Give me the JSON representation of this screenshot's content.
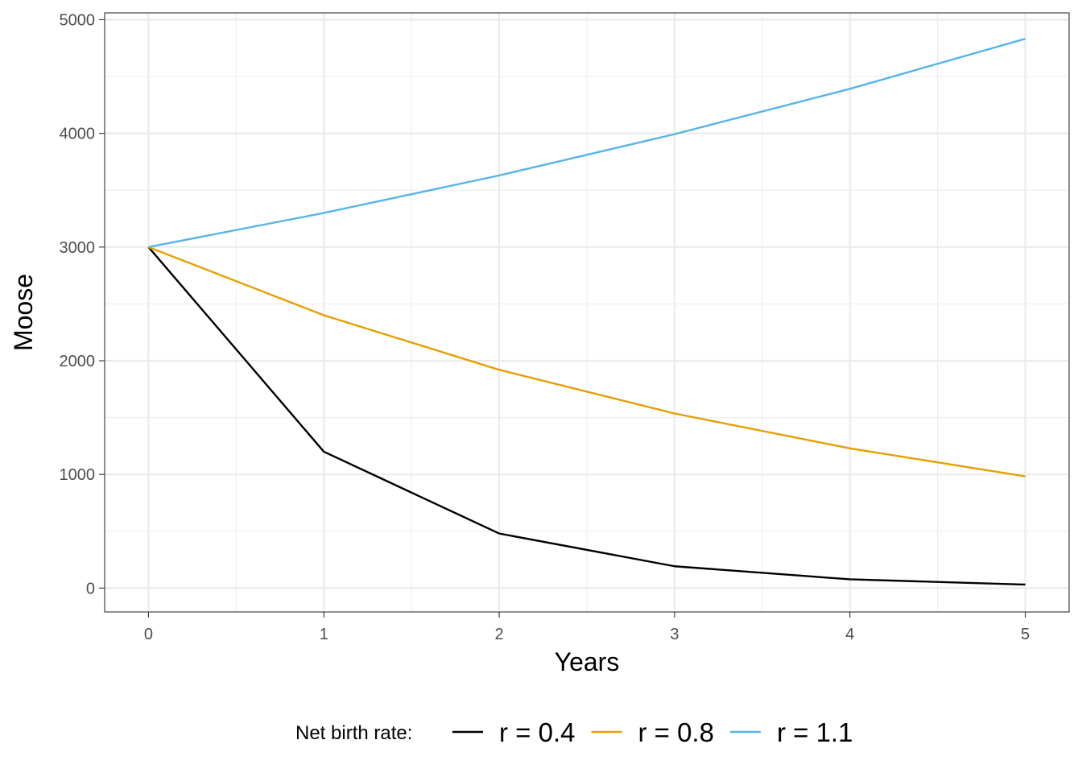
{
  "chart_data": {
    "type": "line",
    "title": "",
    "xlabel": "Years",
    "ylabel": "Moose",
    "x": [
      0,
      1,
      2,
      3,
      4,
      5
    ],
    "xlim": [
      -0.25,
      5.25
    ],
    "ylim": [
      -210,
      5060
    ],
    "x_ticks": [
      0,
      1,
      2,
      3,
      4,
      5
    ],
    "x_tick_labels": [
      "0",
      "1",
      "2",
      "3",
      "4",
      "5"
    ],
    "y_ticks": [
      0,
      1000,
      2000,
      3000,
      4000,
      5000
    ],
    "y_tick_labels": [
      "0",
      "1000",
      "2000",
      "3000",
      "4000",
      "5000"
    ],
    "grid": true,
    "legend": {
      "position": "bottom",
      "title": "Net birth rate:"
    },
    "series": [
      {
        "name": "r = 0.4",
        "color": "#000000",
        "values": [
          3000,
          1200,
          480,
          192,
          77,
          31
        ]
      },
      {
        "name": "r = 0.8",
        "color": "#E69F00",
        "values": [
          3000,
          2400,
          1920,
          1536,
          1229,
          983
        ]
      },
      {
        "name": "r = 1.1",
        "color": "#56B4E9",
        "values": [
          3000,
          3300,
          3630,
          3993,
          4392,
          4832
        ]
      }
    ]
  }
}
